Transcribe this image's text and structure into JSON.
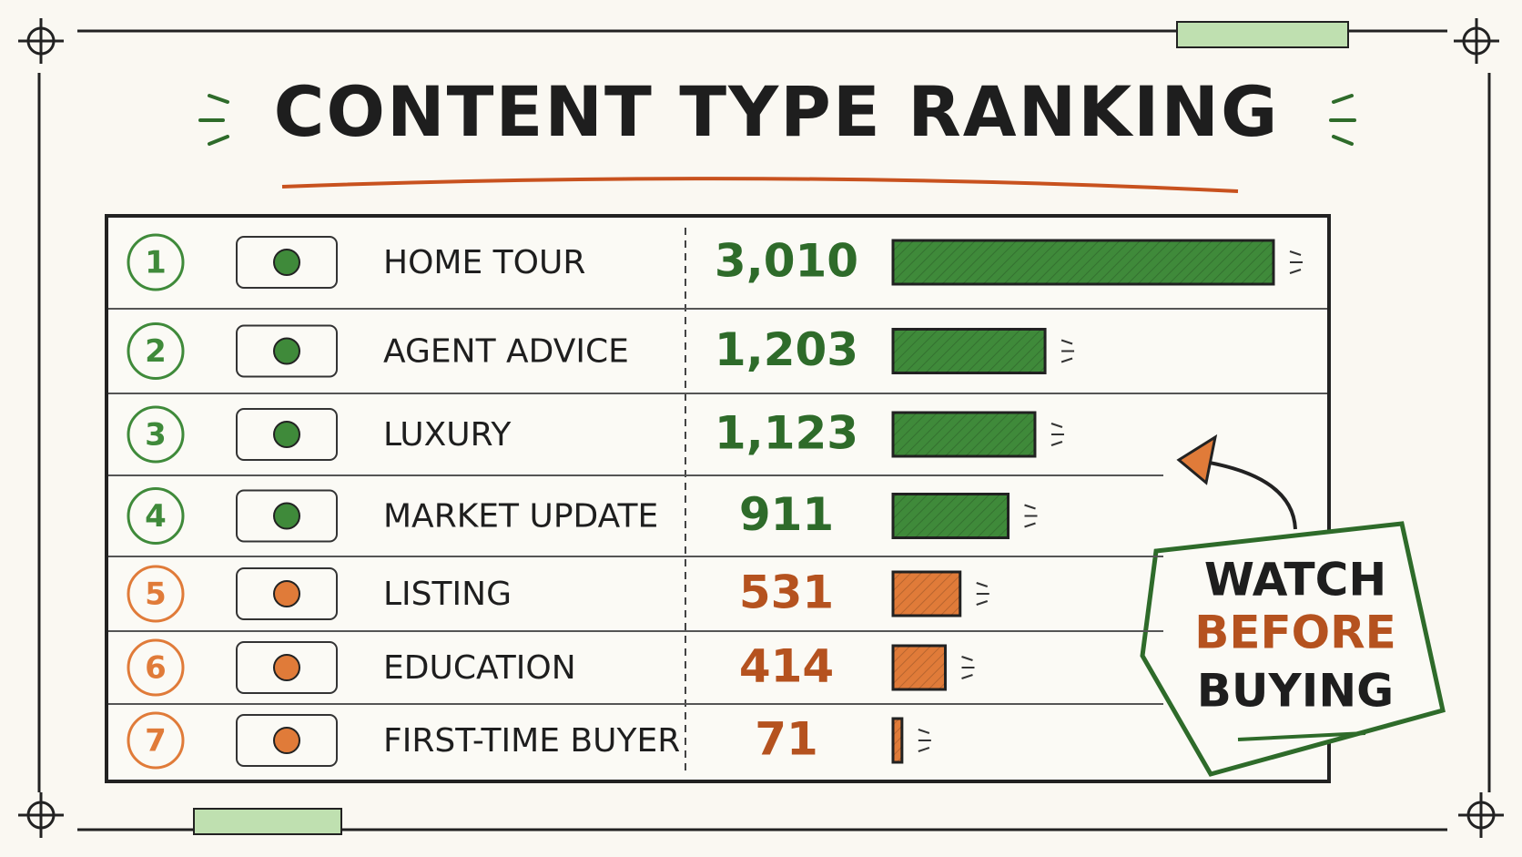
{
  "chart_data": {
    "type": "bar",
    "orientation": "horizontal",
    "title": "CONTENT TYPE RANKING",
    "ranks": [
      1,
      2,
      3,
      4,
      5,
      6,
      7
    ],
    "categories": [
      "HOME TOUR",
      "AGENT ADVICE",
      "LUXURY",
      "MARKET UPDATE",
      "LISTING",
      "EDUCATION",
      "FIRST-TIME BUYER"
    ],
    "values": [
      3010,
      1203,
      1123,
      911,
      531,
      414,
      71
    ],
    "value_labels": [
      "3,010",
      "1,203",
      "1,123",
      "911",
      "531",
      "414",
      "71"
    ],
    "colors": [
      "#3f8a3a",
      "#3f8a3a",
      "#3f8a3a",
      "#3f8a3a",
      "#e07b39",
      "#e07b39",
      "#e07b39"
    ],
    "annotation": [
      "WATCH",
      "BEFORE",
      "BUYING"
    ]
  }
}
